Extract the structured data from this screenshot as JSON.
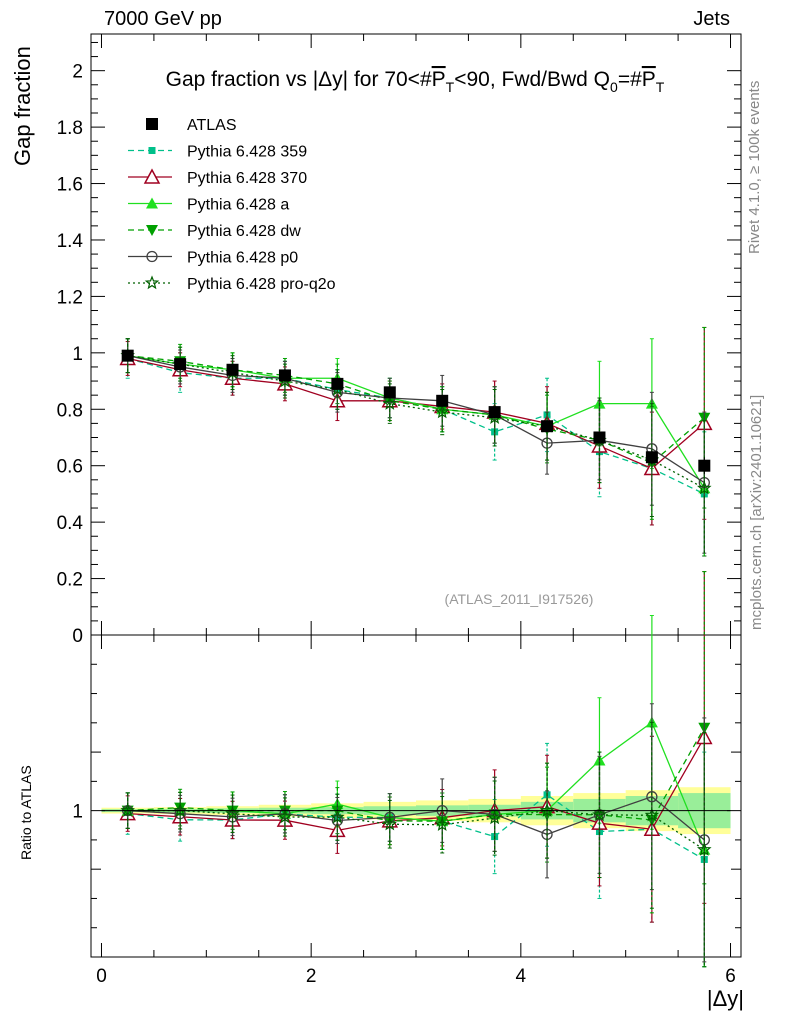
{
  "header": {
    "left": "7000 GeV pp",
    "right": "Jets"
  },
  "side_text": {
    "rivet": "Rivet 4.1.0, ≥ 100k events",
    "mcplots": "mcplots.cern.ch [arXiv:2401.10621]"
  },
  "colors": {
    "atlas": "#000000",
    "p359": "#00c08a",
    "p370": "#a00020",
    "pa": "#20e020",
    "pdw": "#00a000",
    "pp0": "#404040",
    "pq2o": "#006000",
    "band_yellow": "#ffff99",
    "band_green": "#99ee99"
  },
  "chart_data": [
    {
      "type": "line",
      "title_parts": [
        "Gap fraction vs |Δy| for 70<#",
        "P",
        "T",
        "<90, Fwd/Bwd Q",
        "0",
        "=#",
        "P",
        "T"
      ],
      "xlabel": "|Δy|",
      "ylabel": "Gap fraction",
      "xlim": [
        -0.1,
        6.1
      ],
      "ylim": [
        0,
        2.13
      ],
      "yticks": [
        0,
        0.2,
        0.4,
        0.6,
        0.8,
        1,
        1.2,
        1.4,
        1.6,
        1.8,
        2
      ],
      "ytick_labels": [
        "0",
        "0.2",
        "0.4",
        "0.6",
        "0.8",
        "1",
        "1.2",
        "1.4",
        "1.6",
        "1.8",
        "2"
      ],
      "x": [
        0.25,
        0.75,
        1.25,
        1.75,
        2.25,
        2.75,
        3.25,
        3.75,
        4.25,
        4.75,
        5.25,
        5.75
      ],
      "watermark": "(ATLAS_2011_I917526)",
      "data": {
        "name": "ATLAS",
        "values": [
          0.99,
          0.96,
          0.94,
          0.92,
          0.89,
          0.86,
          0.83,
          0.79,
          0.74,
          0.7,
          0.63,
          0.6
        ],
        "errors": [
          0.01,
          0.01,
          0.01,
          0.01,
          0.01,
          0.01,
          0.01,
          0.01,
          0.015,
          0.02,
          0.025,
          0.03
        ]
      },
      "series": [
        {
          "name": "Pythia 6.428 359",
          "key": "p359",
          "style": "dashed",
          "marker": "square-small",
          "values": [
            0.98,
            0.93,
            0.91,
            0.91,
            0.87,
            0.84,
            0.8,
            0.72,
            0.78,
            0.65,
            0.59,
            0.5
          ],
          "errors": [
            0.07,
            0.07,
            0.06,
            0.06,
            0.07,
            0.07,
            0.08,
            0.1,
            0.13,
            0.16,
            0.2,
            0.22
          ]
        },
        {
          "name": "Pythia 6.428 370",
          "key": "p370",
          "style": "solid",
          "marker": "triangle-open",
          "values": [
            0.98,
            0.94,
            0.91,
            0.89,
            0.83,
            0.83,
            0.81,
            0.79,
            0.75,
            0.67,
            0.59,
            0.75
          ],
          "errors": [
            0.06,
            0.06,
            0.06,
            0.06,
            0.07,
            0.07,
            0.08,
            0.11,
            0.13,
            0.15,
            0.2,
            0.34
          ]
        },
        {
          "name": "Pythia 6.428 a",
          "key": "pa",
          "style": "solid",
          "marker": "triangle-filled",
          "values": [
            0.99,
            0.96,
            0.94,
            0.91,
            0.91,
            0.84,
            0.8,
            0.78,
            0.74,
            0.82,
            0.82,
            0.52
          ],
          "errors": [
            0.06,
            0.06,
            0.06,
            0.06,
            0.07,
            0.07,
            0.08,
            0.1,
            0.12,
            0.15,
            0.23,
            0.24
          ]
        },
        {
          "name": "Pythia 6.428 dw",
          "key": "pdw",
          "style": "dashed",
          "marker": "triangle-down-filled",
          "values": [
            0.99,
            0.97,
            0.94,
            0.92,
            0.89,
            0.83,
            0.8,
            0.78,
            0.73,
            0.69,
            0.61,
            0.77
          ],
          "errors": [
            0.06,
            0.06,
            0.06,
            0.06,
            0.07,
            0.07,
            0.08,
            0.1,
            0.12,
            0.15,
            0.2,
            0.32
          ]
        },
        {
          "name": "Pythia 6.428 p0",
          "key": "pp0",
          "style": "solid",
          "marker": "circle-open",
          "values": [
            0.99,
            0.95,
            0.92,
            0.91,
            0.86,
            0.84,
            0.83,
            0.78,
            0.68,
            0.69,
            0.66,
            0.54
          ],
          "errors": [
            0.06,
            0.06,
            0.06,
            0.06,
            0.07,
            0.07,
            0.09,
            0.1,
            0.11,
            0.14,
            0.2,
            0.25
          ]
        },
        {
          "name": "Pythia 6.428 pro-q2o",
          "key": "pq2o",
          "style": "dotted",
          "marker": "star-open",
          "values": [
            0.99,
            0.96,
            0.93,
            0.9,
            0.87,
            0.82,
            0.79,
            0.77,
            0.74,
            0.69,
            0.62,
            0.52
          ],
          "errors": [
            0.06,
            0.06,
            0.06,
            0.06,
            0.07,
            0.07,
            0.08,
            0.1,
            0.12,
            0.15,
            0.2,
            0.24
          ]
        }
      ]
    },
    {
      "type": "line",
      "ylabel": "Ratio to ATLAS",
      "xlabel": "|Δy|",
      "xlim": [
        -0.1,
        6.1
      ],
      "ylim": [
        0.5,
        1.6
      ],
      "yticks": [
        1
      ],
      "ytick_labels": [
        "1"
      ],
      "xticks": [
        0,
        2,
        4,
        6
      ],
      "xtick_labels": [
        "0",
        "2",
        "4",
        "6"
      ],
      "band_yellow_halfwidth": [
        0.01,
        0.012,
        0.015,
        0.02,
        0.025,
        0.03,
        0.035,
        0.04,
        0.05,
        0.06,
        0.07,
        0.08
      ],
      "band_green_halfwidth": [
        0.005,
        0.006,
        0.008,
        0.01,
        0.012,
        0.015,
        0.018,
        0.02,
        0.03,
        0.04,
        0.05,
        0.06
      ]
    }
  ]
}
